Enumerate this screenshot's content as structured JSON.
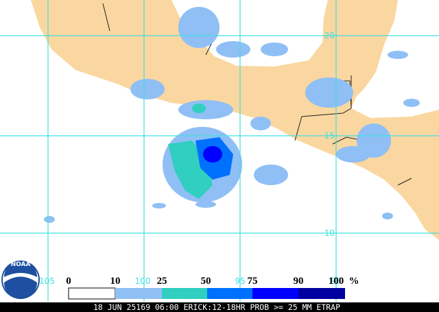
{
  "grid_labels": {
    "lat": [
      "20",
      "15",
      "10"
    ],
    "lon": [
      "105",
      "100",
      "95",
      "90"
    ]
  },
  "legend": {
    "values": [
      0,
      10,
      25,
      50,
      75,
      90,
      100
    ],
    "unit": "%"
  },
  "logo": "NOAA",
  "footer": "18 JUN 25169 06:00 ERICK:12-18HR PROB >= 25 MM ETRAP"
}
